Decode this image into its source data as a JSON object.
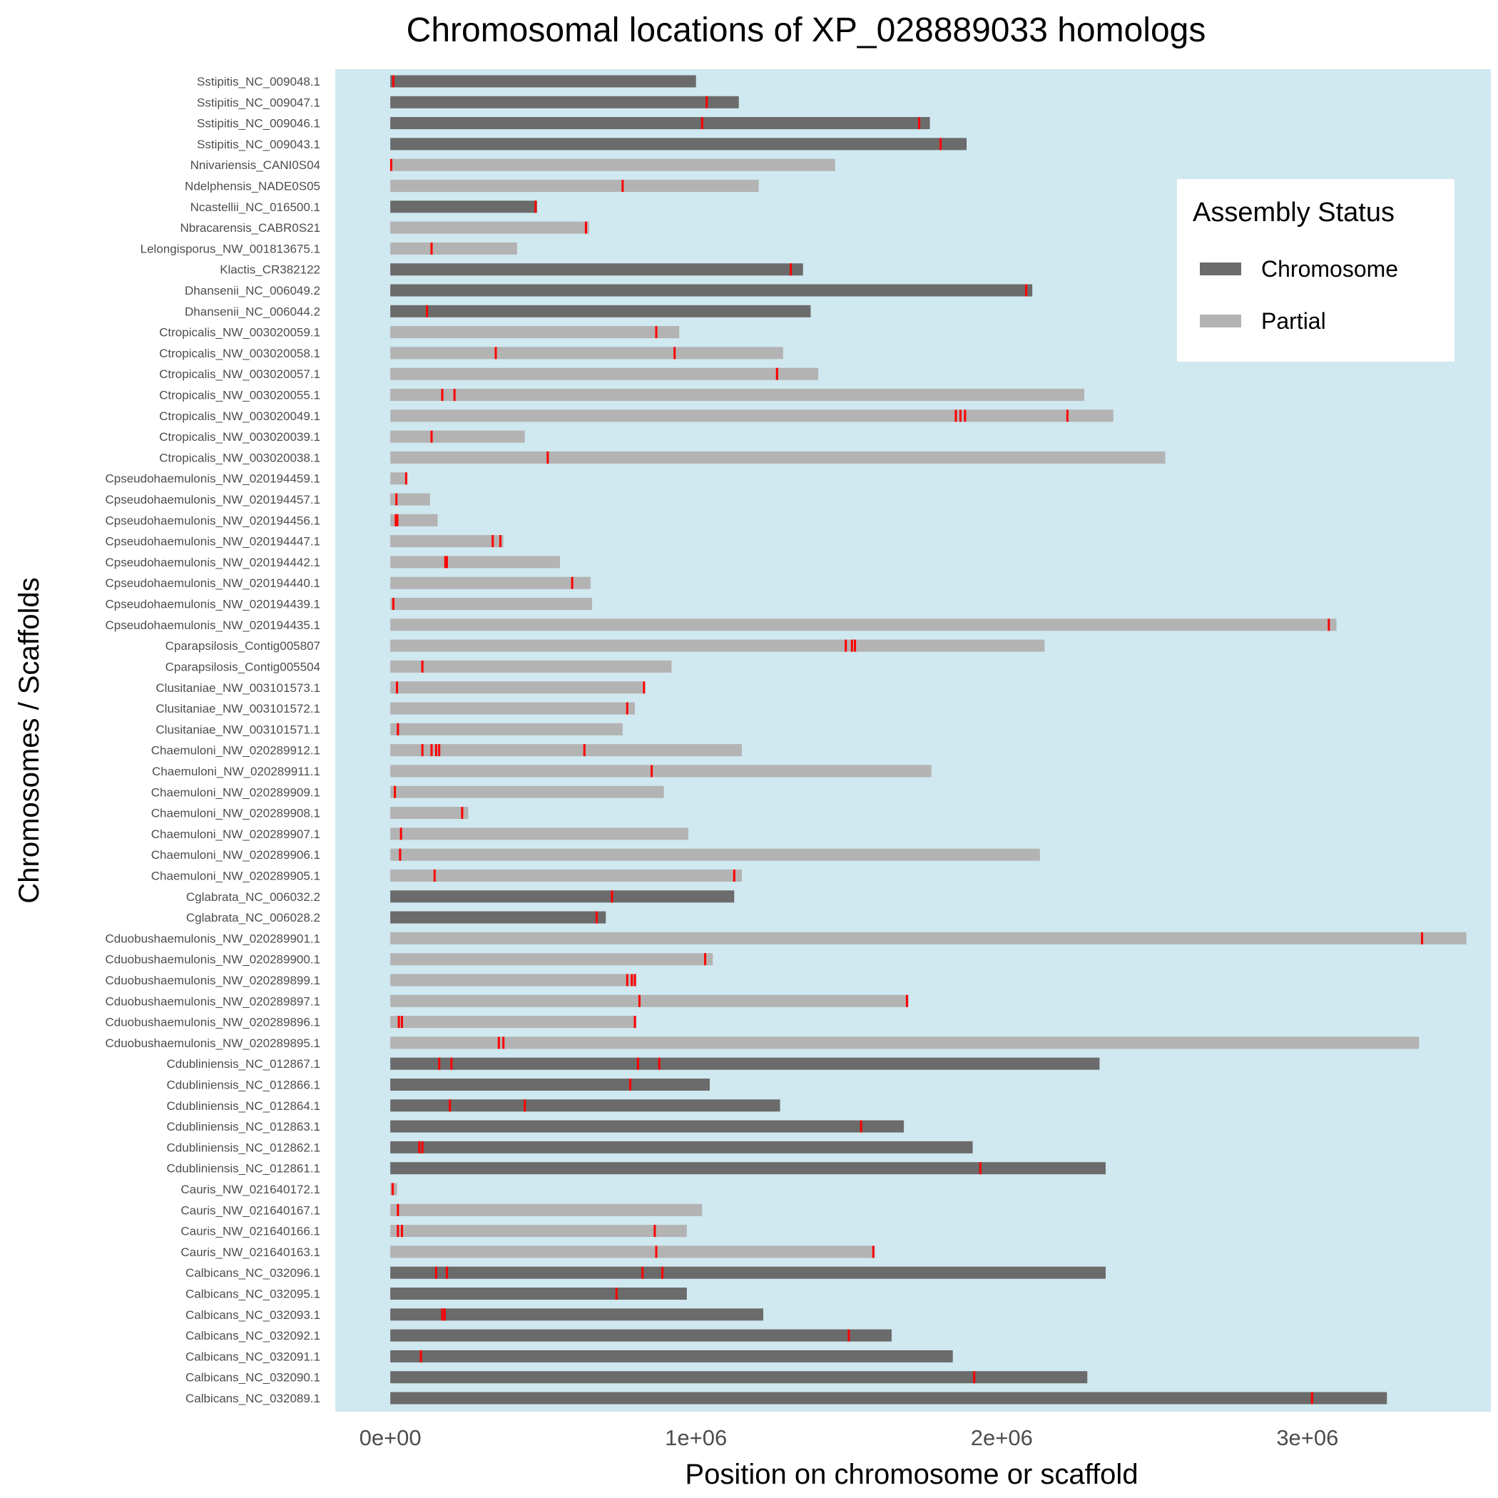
{
  "chart_data": {
    "type": "bar",
    "orientation": "horizontal",
    "title": "Chromosomal locations of XP_028889033 homologs",
    "xlabel": "Position on chromosome or scaffold",
    "ylabel": "Chromosomes / Scaffolds",
    "xlim": [
      -180000,
      3600000
    ],
    "x_ticks": [
      0,
      1000000,
      2000000,
      3000000
    ],
    "x_tick_labels": [
      "0e+00",
      "1e+06",
      "2e+06",
      "3e+06"
    ],
    "grid": false,
    "legend": {
      "title": "Assembly Status",
      "position": "top-right",
      "entries": [
        {
          "label": "Chromosome",
          "color": "#6b6b6b"
        },
        {
          "label": "Partial",
          "color": "#b3b3b3"
        }
      ]
    },
    "colors": {
      "panel": "#d0e8ef",
      "chromosome": "#6b6b6b",
      "partial": "#b3b3b3",
      "hit": "#ff0000"
    },
    "rows": [
      {
        "name": "Sstipitis_NC_009048.1",
        "status": "Chromosome",
        "length": 1000000,
        "hits": [
          10000
        ]
      },
      {
        "name": "Sstipitis_NC_009047.1",
        "status": "Chromosome",
        "length": 1140000,
        "hits": [
          1035000
        ]
      },
      {
        "name": "Sstipitis_NC_009046.1",
        "status": "Chromosome",
        "length": 1765000,
        "hits": [
          1020000,
          1730000
        ]
      },
      {
        "name": "Sstipitis_NC_009043.1",
        "status": "Chromosome",
        "length": 1885000,
        "hits": [
          1800000
        ]
      },
      {
        "name": "Nnivariensis_CANI0S04",
        "status": "Partial",
        "length": 1455000,
        "hits": [
          3000
        ]
      },
      {
        "name": "Ndelphensis_NADE0S05",
        "status": "Partial",
        "length": 1205000,
        "hits": [
          760000
        ]
      },
      {
        "name": "Ncastellii_NC_016500.1",
        "status": "Chromosome",
        "length": 480000,
        "hits": [
          475000
        ]
      },
      {
        "name": "Nbracarensis_CABR0S21",
        "status": "Partial",
        "length": 650000,
        "hits": [
          640000
        ]
      },
      {
        "name": "Lelongisporus_NW_001813675.1",
        "status": "Partial",
        "length": 415000,
        "hits": [
          135000
        ]
      },
      {
        "name": "Klactis_CR382122",
        "status": "Chromosome",
        "length": 1350000,
        "hits": [
          1310000
        ]
      },
      {
        "name": "Dhansenii_NC_006049.2",
        "status": "Chromosome",
        "length": 2100000,
        "hits": [
          2080000
        ]
      },
      {
        "name": "Dhansenii_NC_006044.2",
        "status": "Chromosome",
        "length": 1375000,
        "hits": [
          120000
        ]
      },
      {
        "name": "Ctropicalis_NW_003020059.1",
        "status": "Partial",
        "length": 945000,
        "hits": [
          870000
        ]
      },
      {
        "name": "Ctropicalis_NW_003020058.1",
        "status": "Partial",
        "length": 1285000,
        "hits": [
          345000,
          930000
        ]
      },
      {
        "name": "Ctropicalis_NW_003020057.1",
        "status": "Partial",
        "length": 1400000,
        "hits": [
          1265000
        ]
      },
      {
        "name": "Ctropicalis_NW_003020055.1",
        "status": "Partial",
        "length": 2270000,
        "hits": [
          170000,
          210000
        ]
      },
      {
        "name": "Ctropicalis_NW_003020049.1",
        "status": "Partial",
        "length": 2365000,
        "hits": [
          1850000,
          1865000,
          1880000,
          2215000
        ]
      },
      {
        "name": "Ctropicalis_NW_003020039.1",
        "status": "Partial",
        "length": 440000,
        "hits": [
          135000
        ]
      },
      {
        "name": "Ctropicalis_NW_003020038.1",
        "status": "Partial",
        "length": 2535000,
        "hits": [
          515000
        ]
      },
      {
        "name": "Cpseudohaemulonis_NW_020194459.1",
        "status": "Partial",
        "length": 55000,
        "hits": [
          52000
        ]
      },
      {
        "name": "Cpseudohaemulonis_NW_020194457.1",
        "status": "Partial",
        "length": 130000,
        "hits": [
          20000
        ]
      },
      {
        "name": "Cpseudohaemulonis_NW_020194456.1",
        "status": "Partial",
        "length": 155000,
        "hits": [
          18000,
          23000
        ]
      },
      {
        "name": "Cpseudohaemulonis_NW_020194447.1",
        "status": "Partial",
        "length": 370000,
        "hits": [
          335000,
          360000
        ]
      },
      {
        "name": "Cpseudohaemulonis_NW_020194442.1",
        "status": "Partial",
        "length": 555000,
        "hits": [
          180000,
          185000
        ]
      },
      {
        "name": "Cpseudohaemulonis_NW_020194440.1",
        "status": "Partial",
        "length": 655000,
        "hits": [
          595000
        ]
      },
      {
        "name": "Cpseudohaemulonis_NW_020194439.1",
        "status": "Partial",
        "length": 660000,
        "hits": [
          10000
        ]
      },
      {
        "name": "Cpseudohaemulonis_NW_020194435.1",
        "status": "Partial",
        "length": 3095000,
        "hits": [
          3070000
        ]
      },
      {
        "name": "Cparapsilosis_Contig005807",
        "status": "Partial",
        "length": 2140000,
        "hits": [
          1490000,
          1510000,
          1520000
        ]
      },
      {
        "name": "Cparapsilosis_Contig005504",
        "status": "Partial",
        "length": 920000,
        "hits": [
          105000
        ]
      },
      {
        "name": "Clusitaniae_NW_003101573.1",
        "status": "Partial",
        "length": 830000,
        "hits": [
          22000,
          830000
        ]
      },
      {
        "name": "Clusitaniae_NW_003101572.1",
        "status": "Partial",
        "length": 800000,
        "hits": [
          775000
        ]
      },
      {
        "name": "Clusitaniae_NW_003101571.1",
        "status": "Partial",
        "length": 760000,
        "hits": [
          25000
        ]
      },
      {
        "name": "Chaemuloni_NW_020289912.1",
        "status": "Partial",
        "length": 1150000,
        "hits": [
          105000,
          135000,
          150000,
          160000,
          635000
        ]
      },
      {
        "name": "Chaemuloni_NW_020289911.1",
        "status": "Partial",
        "length": 1770000,
        "hits": [
          855000
        ]
      },
      {
        "name": "Chaemuloni_NW_020289909.1",
        "status": "Partial",
        "length": 895000,
        "hits": [
          15000
        ]
      },
      {
        "name": "Chaemuloni_NW_020289908.1",
        "status": "Partial",
        "length": 255000,
        "hits": [
          235000
        ]
      },
      {
        "name": "Chaemuloni_NW_020289907.1",
        "status": "Partial",
        "length": 975000,
        "hits": [
          35000
        ]
      },
      {
        "name": "Chaemuloni_NW_020289906.1",
        "status": "Partial",
        "length": 2125000,
        "hits": [
          32000
        ]
      },
      {
        "name": "Chaemuloni_NW_020289905.1",
        "status": "Partial",
        "length": 1150000,
        "hits": [
          145000,
          1125000
        ]
      },
      {
        "name": "Cglabrata_NC_006032.2",
        "status": "Chromosome",
        "length": 1125000,
        "hits": [
          725000
        ]
      },
      {
        "name": "Cglabrata_NC_006028.2",
        "status": "Chromosome",
        "length": 705000,
        "hits": [
          675000
        ]
      },
      {
        "name": "Cduobushaemulonis_NW_020289901.1",
        "status": "Partial",
        "length": 3520000,
        "hits": [
          3375000
        ]
      },
      {
        "name": "Cduobushaemulonis_NW_020289900.1",
        "status": "Partial",
        "length": 1055000,
        "hits": [
          1030000
        ]
      },
      {
        "name": "Cduobushaemulonis_NW_020289899.1",
        "status": "Partial",
        "length": 805000,
        "hits": [
          775000,
          790000,
          800000
        ]
      },
      {
        "name": "Cduobushaemulonis_NW_020289897.1",
        "status": "Partial",
        "length": 1695000,
        "hits": [
          815000,
          1690000
        ]
      },
      {
        "name": "Cduobushaemulonis_NW_020289896.1",
        "status": "Partial",
        "length": 805000,
        "hits": [
          28000,
          38000,
          800000
        ]
      },
      {
        "name": "Cduobushaemulonis_NW_020289895.1",
        "status": "Partial",
        "length": 3365000,
        "hits": [
          355000,
          370000
        ]
      },
      {
        "name": "Cdubliniensis_NC_012867.1",
        "status": "Chromosome",
        "length": 2320000,
        "hits": [
          160000,
          200000,
          810000,
          880000
        ]
      },
      {
        "name": "Cdubliniensis_NC_012866.1",
        "status": "Chromosome",
        "length": 1045000,
        "hits": [
          785000
        ]
      },
      {
        "name": "Cdubliniensis_NC_012864.1",
        "status": "Chromosome",
        "length": 1275000,
        "hits": [
          195000,
          440000
        ]
      },
      {
        "name": "Cdubliniensis_NC_012863.1",
        "status": "Chromosome",
        "length": 1680000,
        "hits": [
          1540000
        ]
      },
      {
        "name": "Cdubliniensis_NC_012862.1",
        "status": "Chromosome",
        "length": 1905000,
        "hits": [
          95000,
          105000
        ]
      },
      {
        "name": "Cdubliniensis_NC_012861.1",
        "status": "Chromosome",
        "length": 2340000,
        "hits": [
          1930000
        ]
      },
      {
        "name": "Cauris_NW_021640172.1",
        "status": "Partial",
        "length": 22000,
        "hits": [
          8000
        ]
      },
      {
        "name": "Cauris_NW_021640167.1",
        "status": "Partial",
        "length": 1020000,
        "hits": [
          25000
        ]
      },
      {
        "name": "Cauris_NW_021640166.1",
        "status": "Partial",
        "length": 970000,
        "hits": [
          25000,
          38000,
          865000
        ]
      },
      {
        "name": "Cauris_NW_021640163.1",
        "status": "Partial",
        "length": 1585000,
        "hits": [
          870000,
          1580000
        ]
      },
      {
        "name": "Calbicans_NC_032096.1",
        "status": "Chromosome",
        "length": 2340000,
        "hits": [
          150000,
          185000,
          825000,
          890000
        ]
      },
      {
        "name": "Calbicans_NC_032095.1",
        "status": "Chromosome",
        "length": 970000,
        "hits": [
          740000
        ]
      },
      {
        "name": "Calbicans_NC_032093.1",
        "status": "Chromosome",
        "length": 1220000,
        "hits": [
          170000,
          178000
        ]
      },
      {
        "name": "Calbicans_NC_032092.1",
        "status": "Chromosome",
        "length": 1640000,
        "hits": [
          1500000
        ]
      },
      {
        "name": "Calbicans_NC_032091.1",
        "status": "Chromosome",
        "length": 1840000,
        "hits": [
          100000
        ]
      },
      {
        "name": "Calbicans_NC_032090.1",
        "status": "Chromosome",
        "length": 2280000,
        "hits": [
          1910000
        ]
      },
      {
        "name": "Calbicans_NC_032089.1",
        "status": "Chromosome",
        "length": 3260000,
        "hits": [
          3015000
        ]
      }
    ]
  }
}
